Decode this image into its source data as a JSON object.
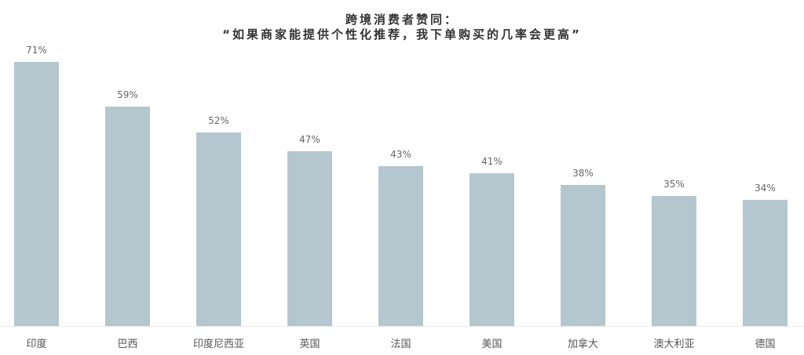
{
  "chart_data": {
    "type": "bar",
    "title": "跨境消费者赞同：",
    "subtitle": "“如果商家能提供个性化推荐，我下单购买的几率会更高”",
    "categories": [
      "印度",
      "巴西",
      "印度尼西亚",
      "英国",
      "法国",
      "美国",
      "加拿大",
      "澳大利亚",
      "德国"
    ],
    "values": [
      71,
      59,
      52,
      47,
      43,
      41,
      38,
      35,
      34
    ],
    "value_labels": [
      "71%",
      "59%",
      "52%",
      "47%",
      "43%",
      "41%",
      "38%",
      "35%",
      "34%"
    ],
    "xlabel": "",
    "ylabel": "",
    "ylim": [
      0,
      71
    ],
    "grid": false,
    "legend": "none",
    "bar_color": "#b4c7ce"
  }
}
